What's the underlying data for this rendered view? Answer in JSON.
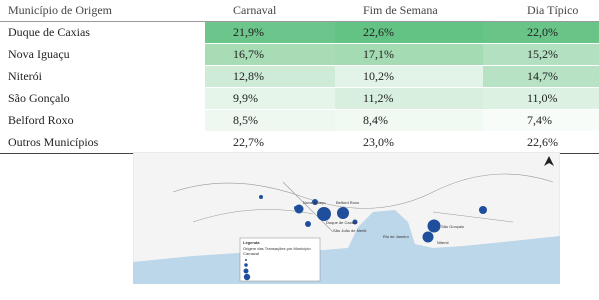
{
  "table": {
    "header": [
      "Município de Origem",
      "Carnaval",
      "Fim de Semana",
      "Dia Típico"
    ],
    "rows": [
      [
        "Duque de Caxias",
        "21,9%",
        "22,6%",
        "22,0%"
      ],
      [
        "Nova Iguaçu",
        "16,7%",
        "17,1%",
        "15,2%"
      ],
      [
        "Niterói",
        "12,8%",
        "10,2%",
        "14,7%"
      ],
      [
        "São Gonçalo",
        "9,9%",
        "11,2%",
        "11,0%"
      ],
      [
        "Belford Roxo",
        "8,5%",
        "8,4%",
        "7,4%"
      ],
      [
        "Outros Municípios",
        "22,7%",
        "23,0%",
        "22,6%"
      ]
    ]
  },
  "map": {
    "labels": [
      "Duque de Caxias",
      "Nova Iguaçu",
      "Belford Roxo",
      "São João de Meriti",
      "Niterói",
      "São Gonçalo",
      "Rio de Janeiro"
    ],
    "legend": {
      "title": "Legenda",
      "subtitle": "Origem das Transações por Município",
      "item": "Carnaval"
    }
  }
}
